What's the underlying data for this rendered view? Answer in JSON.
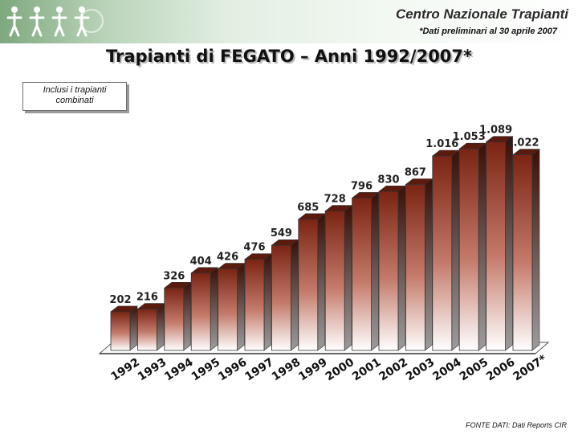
{
  "header": {
    "org_name": "Centro Nazionale Trapianti",
    "note": "*Dati preliminari al 30 aprile 2007"
  },
  "logo_icon": "people-figures-logo-icon",
  "page_title": "Trapianti di FEGATO – Anni 1992/2007*",
  "note_box": "Inclusi i trapianti combinati",
  "source": "FONTE DATI: Dati Reports CIR",
  "colors": {
    "bar_dark": "#7a2413",
    "bar_light": "#ffffff",
    "header_green": "#7ea87e"
  },
  "chart_data": {
    "type": "bar",
    "title": "Trapianti di FEGATO – Anni 1992/2007*",
    "categories": [
      "1992",
      "1993",
      "1994",
      "1995",
      "1996",
      "1997",
      "1998",
      "1999",
      "2000",
      "2001",
      "2002",
      "2003",
      "2004",
      "2005",
      "2006",
      "2007*"
    ],
    "values": [
      202,
      216,
      326,
      404,
      426,
      476,
      549,
      685,
      728,
      796,
      830,
      867,
      1016,
      1053,
      1089,
      1022
    ],
    "value_labels": [
      "202",
      "216",
      "326",
      "404",
      "426",
      "476",
      "549",
      "685",
      "728",
      "796",
      "830",
      "867",
      "1.016",
      "1.053",
      "1.089",
      "1.022"
    ],
    "xlabel": "",
    "ylabel": "",
    "ylim": [
      0,
      1100
    ],
    "grid": false,
    "legend": "none"
  }
}
